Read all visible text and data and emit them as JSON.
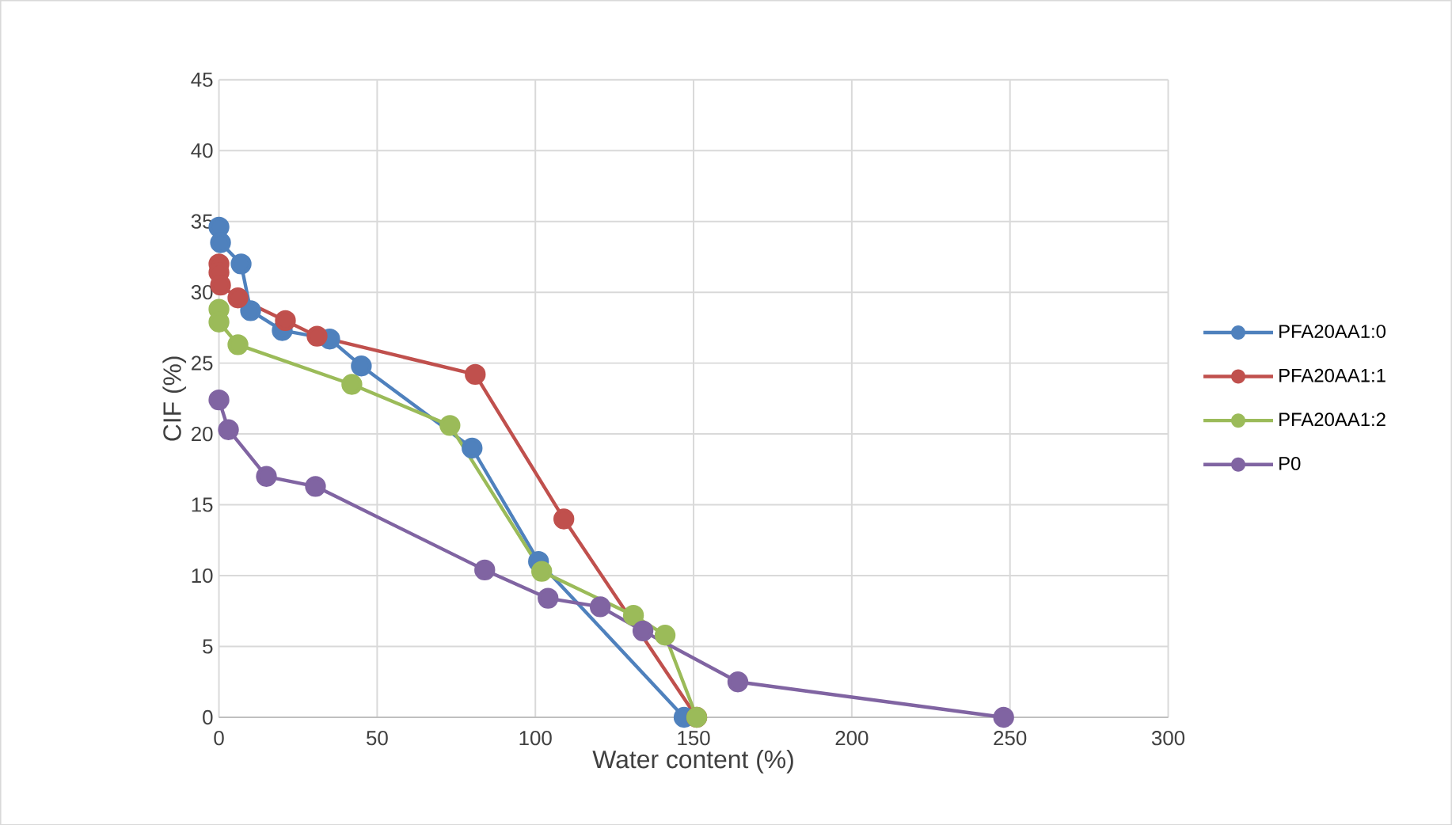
{
  "chart_data": {
    "type": "line",
    "xlabel": "Water content (%)",
    "ylabel": "CIF (%)",
    "xlim": [
      0,
      300
    ],
    "xticks": [
      0,
      50,
      100,
      150,
      200,
      250,
      300
    ],
    "ylim": [
      0,
      45
    ],
    "yticks": [
      0,
      5,
      10,
      15,
      20,
      25,
      30,
      35,
      40,
      45
    ],
    "grid": true,
    "legend": "right",
    "marker": "circle",
    "line_style": "solid",
    "series": [
      {
        "name": "PFA20AA1:0",
        "color": "#4f81bd",
        "x": [
          0,
          0.5,
          7,
          10,
          20,
          35,
          45,
          80,
          101,
          147
        ],
        "values": [
          34.6,
          33.5,
          32,
          28.7,
          27.3,
          26.7,
          24.8,
          19,
          11,
          0
        ]
      },
      {
        "name": "PFA20AA1:1",
        "color": "#c0504d",
        "x": [
          0,
          0,
          0.5,
          6,
          21,
          31,
          81,
          109,
          151
        ],
        "values": [
          32,
          31.4,
          30.5,
          29.6,
          28,
          26.9,
          24.2,
          14,
          0
        ]
      },
      {
        "name": "PFA20AA1:2",
        "color": "#9bbb59",
        "x": [
          0,
          0,
          6,
          42,
          73,
          102,
          131,
          141,
          151
        ],
        "values": [
          28.8,
          27.9,
          26.3,
          23.5,
          20.6,
          10.3,
          7.2,
          5.8,
          0
        ]
      },
      {
        "name": "P0",
        "color": "#8064a2",
        "x": [
          0,
          3,
          15,
          30.5,
          84,
          104,
          120.5,
          134,
          164,
          248
        ],
        "values": [
          22.4,
          20.3,
          17,
          16.3,
          10.4,
          8.4,
          7.8,
          6.1,
          2.5,
          0
        ]
      }
    ]
  }
}
